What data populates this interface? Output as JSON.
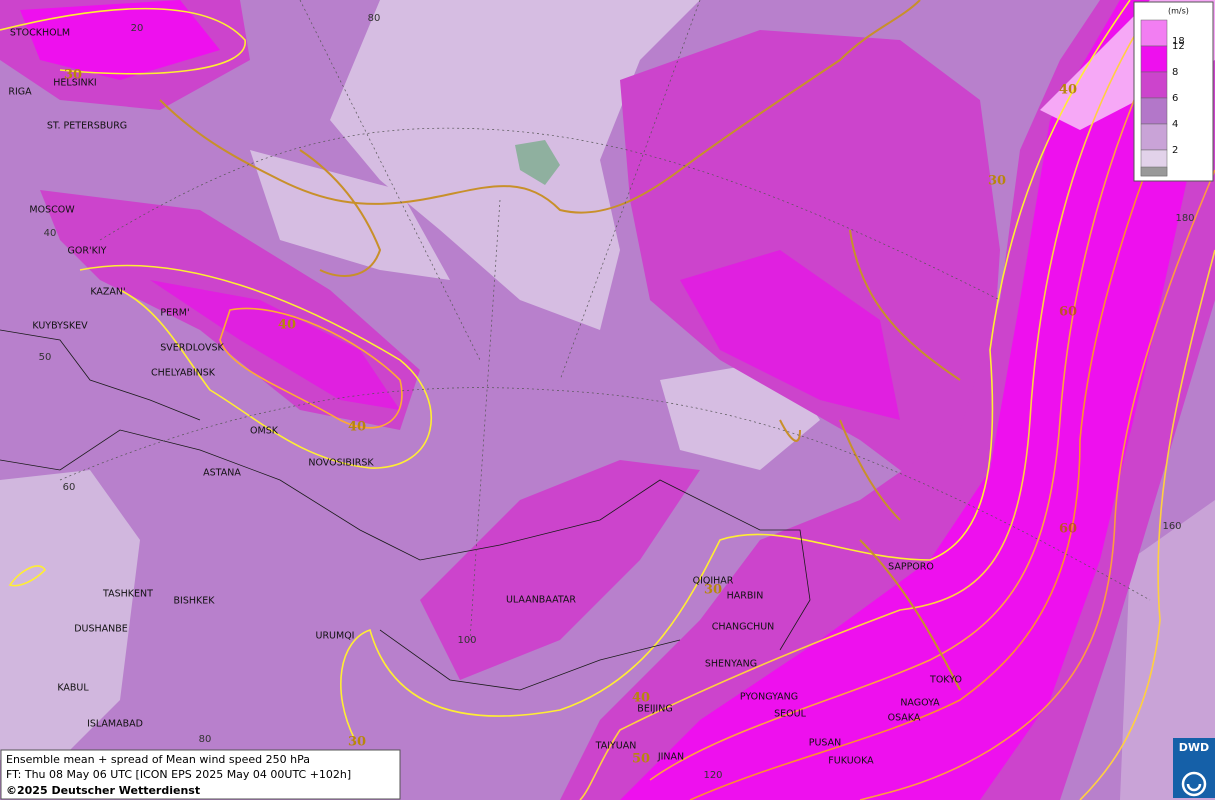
{
  "map": {
    "cities": [
      "STOCKHOLM",
      "HELSINKI",
      "RIGA",
      "ST. PETERSBURG",
      "MOSCOW",
      "GOR'KIY",
      "KAZAN'",
      "PERM'",
      "KUYBYSKEV",
      "SVERDLOVSK",
      "CHELYABINSK",
      "OMSK",
      "NOVOSIBIRSK",
      "ASTANA",
      "TASHKENT",
      "BISHKEK",
      "DUSHANBE",
      "URUMQI",
      "KABUL",
      "ISLAMABAD",
      "ULAANBAATAR",
      "QIQIHAR",
      "HARBIN",
      "CHANGCHUN",
      "SHENYANG",
      "PYONGYANG",
      "BEIJING",
      "SEOUL",
      "TAIYUAN",
      "JINAN",
      "PUSAN",
      "FUKUOKA",
      "SAPPORO",
      "TOKYO",
      "NAGOYA",
      "OSAKA"
    ],
    "grid_labels": [
      "20",
      "80",
      "40",
      "50",
      "60",
      "100",
      "80",
      "120",
      "180",
      "160"
    ],
    "contour_labels": [
      "30",
      "40",
      "40",
      "30",
      "40",
      "60",
      "60",
      "30",
      "40",
      "50",
      "30"
    ],
    "legend": {
      "unit": "(m/s)",
      "levels": [
        "18",
        "12",
        "8",
        "6",
        "4",
        "2"
      ],
      "colors": [
        "#f27ef2",
        "#ee10ee",
        "#cc44cc",
        "#b377c9",
        "#c9a3d7",
        "#e2d2ea"
      ]
    },
    "info": [
      "Ensemble mean + spread of Mean wind speed 250 hPa",
      "FT: Thu 08 May 06 UTC [ICON EPS 2025 May 04 00UTC +102h]",
      "©2025 Deutscher Wetterdienst"
    ],
    "logo": "DWD"
  }
}
